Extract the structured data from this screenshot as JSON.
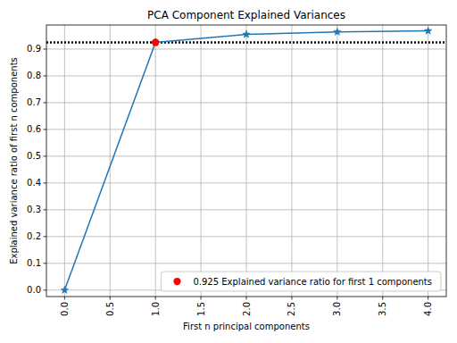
{
  "chart_data": {
    "type": "line",
    "title": "PCA Component Explained Variances",
    "x_label": "First n principal components",
    "y_label": "Explained variance ratio of first n components",
    "series": [
      {
        "x": [
          0,
          1,
          2,
          3,
          4
        ],
        "values": [
          0,
          0.925,
          0.955,
          0.964,
          0.968
        ],
        "color": "#1f77b4",
        "marker": "star",
        "line_style": "solid"
      },
      {
        "name": "0.925 Explained variance ratio for first 1 components",
        "type": "scatter",
        "x": [
          1
        ],
        "values": [
          0.925
        ],
        "color": "#ff0000",
        "marker": "circle"
      }
    ],
    "reference_line": {
      "value": 0.925,
      "color": "#000000",
      "line_style": "dotted"
    },
    "xlim": [
      -0.2,
      4.2
    ],
    "ylim": [
      -0.024,
      0.99
    ],
    "xticks": [
      {
        "value": 0,
        "label": "0.0"
      },
      0.5,
      {
        "value": 1,
        "label": "1.0"
      },
      1.5,
      {
        "value": 2,
        "label": "2.0"
      },
      2.5,
      {
        "value": 3,
        "label": "3.0"
      },
      3.5,
      {
        "value": 4,
        "label": "4.0"
      }
    ],
    "yticks": [
      {
        "value": 0,
        "label": "0.0"
      },
      0.1,
      0.2,
      0.3,
      0.4,
      0.5,
      0.6,
      0.7,
      0.8,
      0.9
    ],
    "grid": true,
    "legend": "lower right"
  }
}
